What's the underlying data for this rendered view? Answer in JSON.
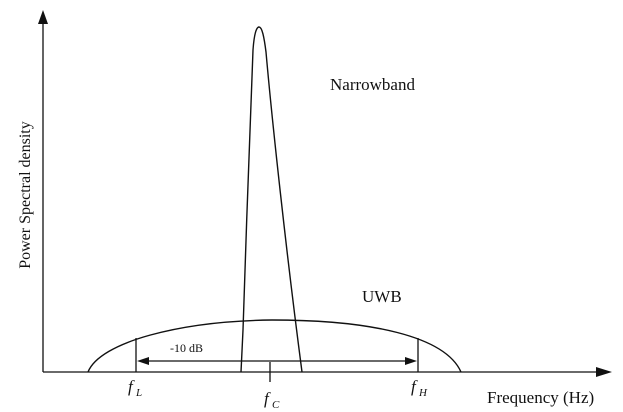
{
  "diagram": {
    "y_axis_label": "Power Spectral density",
    "x_axis_label": "Frequency (Hz)",
    "narrowband_label": "Narrowband",
    "uwb_label": "UWB",
    "bandwidth_label": "-10 dB",
    "freq_low": {
      "symbol": "f",
      "subscript": "L"
    },
    "freq_center": {
      "symbol": "f",
      "subscript": "C"
    },
    "freq_high": {
      "symbol": "f",
      "subscript": "H"
    },
    "line_color": "#111111"
  }
}
